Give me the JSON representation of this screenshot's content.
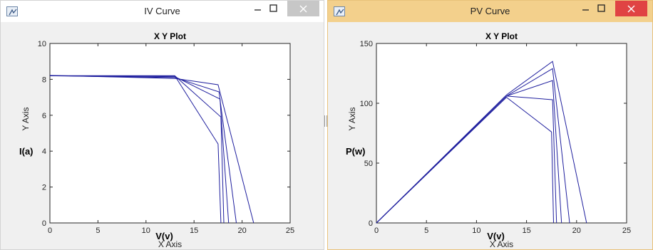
{
  "windows": {
    "iv": {
      "title": "IV Curve"
    },
    "pv": {
      "title": "PV Curve"
    }
  },
  "icons": {
    "app": "matlab-figure-icon",
    "minimize": "minimize-icon",
    "maximize": "maximize-icon",
    "close": "close-icon"
  },
  "colors": {
    "series": "#1f1f9e",
    "iv_close_button": "#c7c7c7",
    "pv_close_button": "#e04343",
    "pv_titlebar": "#f3d08c"
  },
  "chart_data": [
    {
      "type": "line",
      "title": "X Y Plot",
      "xlabel": "X Axis",
      "ylabel": "Y Axis",
      "x_annotation": "V(v)",
      "y_annotation": "I(a)",
      "xlim": [
        0,
        25
      ],
      "ylim": [
        0,
        10
      ],
      "xticks": [
        0,
        5,
        10,
        15,
        20,
        25
      ],
      "yticks": [
        0,
        2,
        4,
        6,
        8,
        10
      ],
      "grid": false,
      "series": [
        {
          "x": [
            0,
            13.0,
            17.5,
            21.2
          ],
          "y": [
            8.22,
            8.05,
            7.7,
            0
          ]
        },
        {
          "x": [
            0,
            13.0,
            17.6,
            19.4
          ],
          "y": [
            8.2,
            8.1,
            7.3,
            0
          ]
        },
        {
          "x": [
            0,
            13.0,
            17.7,
            18.6
          ],
          "y": [
            8.2,
            8.15,
            6.9,
            0
          ]
        },
        {
          "x": [
            0,
            13.0,
            17.8,
            18.1
          ],
          "y": [
            8.2,
            8.2,
            5.9,
            0
          ]
        },
        {
          "x": [
            0,
            13.0,
            17.5,
            17.8
          ],
          "y": [
            8.2,
            8.2,
            4.4,
            0
          ]
        }
      ]
    },
    {
      "type": "line",
      "title": "X Y Plot",
      "xlabel": "X Axis",
      "ylabel": "Y Axis",
      "x_annotation": "V(v)",
      "y_annotation": "P(w)",
      "xlim": [
        0,
        25
      ],
      "ylim": [
        0,
        150
      ],
      "xticks": [
        0,
        5,
        10,
        15,
        20,
        25
      ],
      "yticks": [
        0,
        50,
        100,
        150
      ],
      "grid": false,
      "series": [
        {
          "x": [
            0,
            13.0,
            17.6,
            21.0
          ],
          "y": [
            0,
            107,
            135,
            0
          ]
        },
        {
          "x": [
            0,
            13.0,
            17.6,
            19.3
          ],
          "y": [
            0,
            106,
            129,
            0
          ]
        },
        {
          "x": [
            0,
            13.0,
            17.6,
            18.5
          ],
          "y": [
            0,
            106,
            119,
            0
          ]
        },
        {
          "x": [
            0,
            13.0,
            17.6,
            18.0
          ],
          "y": [
            0,
            106,
            103,
            0
          ]
        },
        {
          "x": [
            0,
            13.0,
            17.5,
            17.7
          ],
          "y": [
            0,
            105,
            76,
            0
          ]
        }
      ]
    }
  ]
}
